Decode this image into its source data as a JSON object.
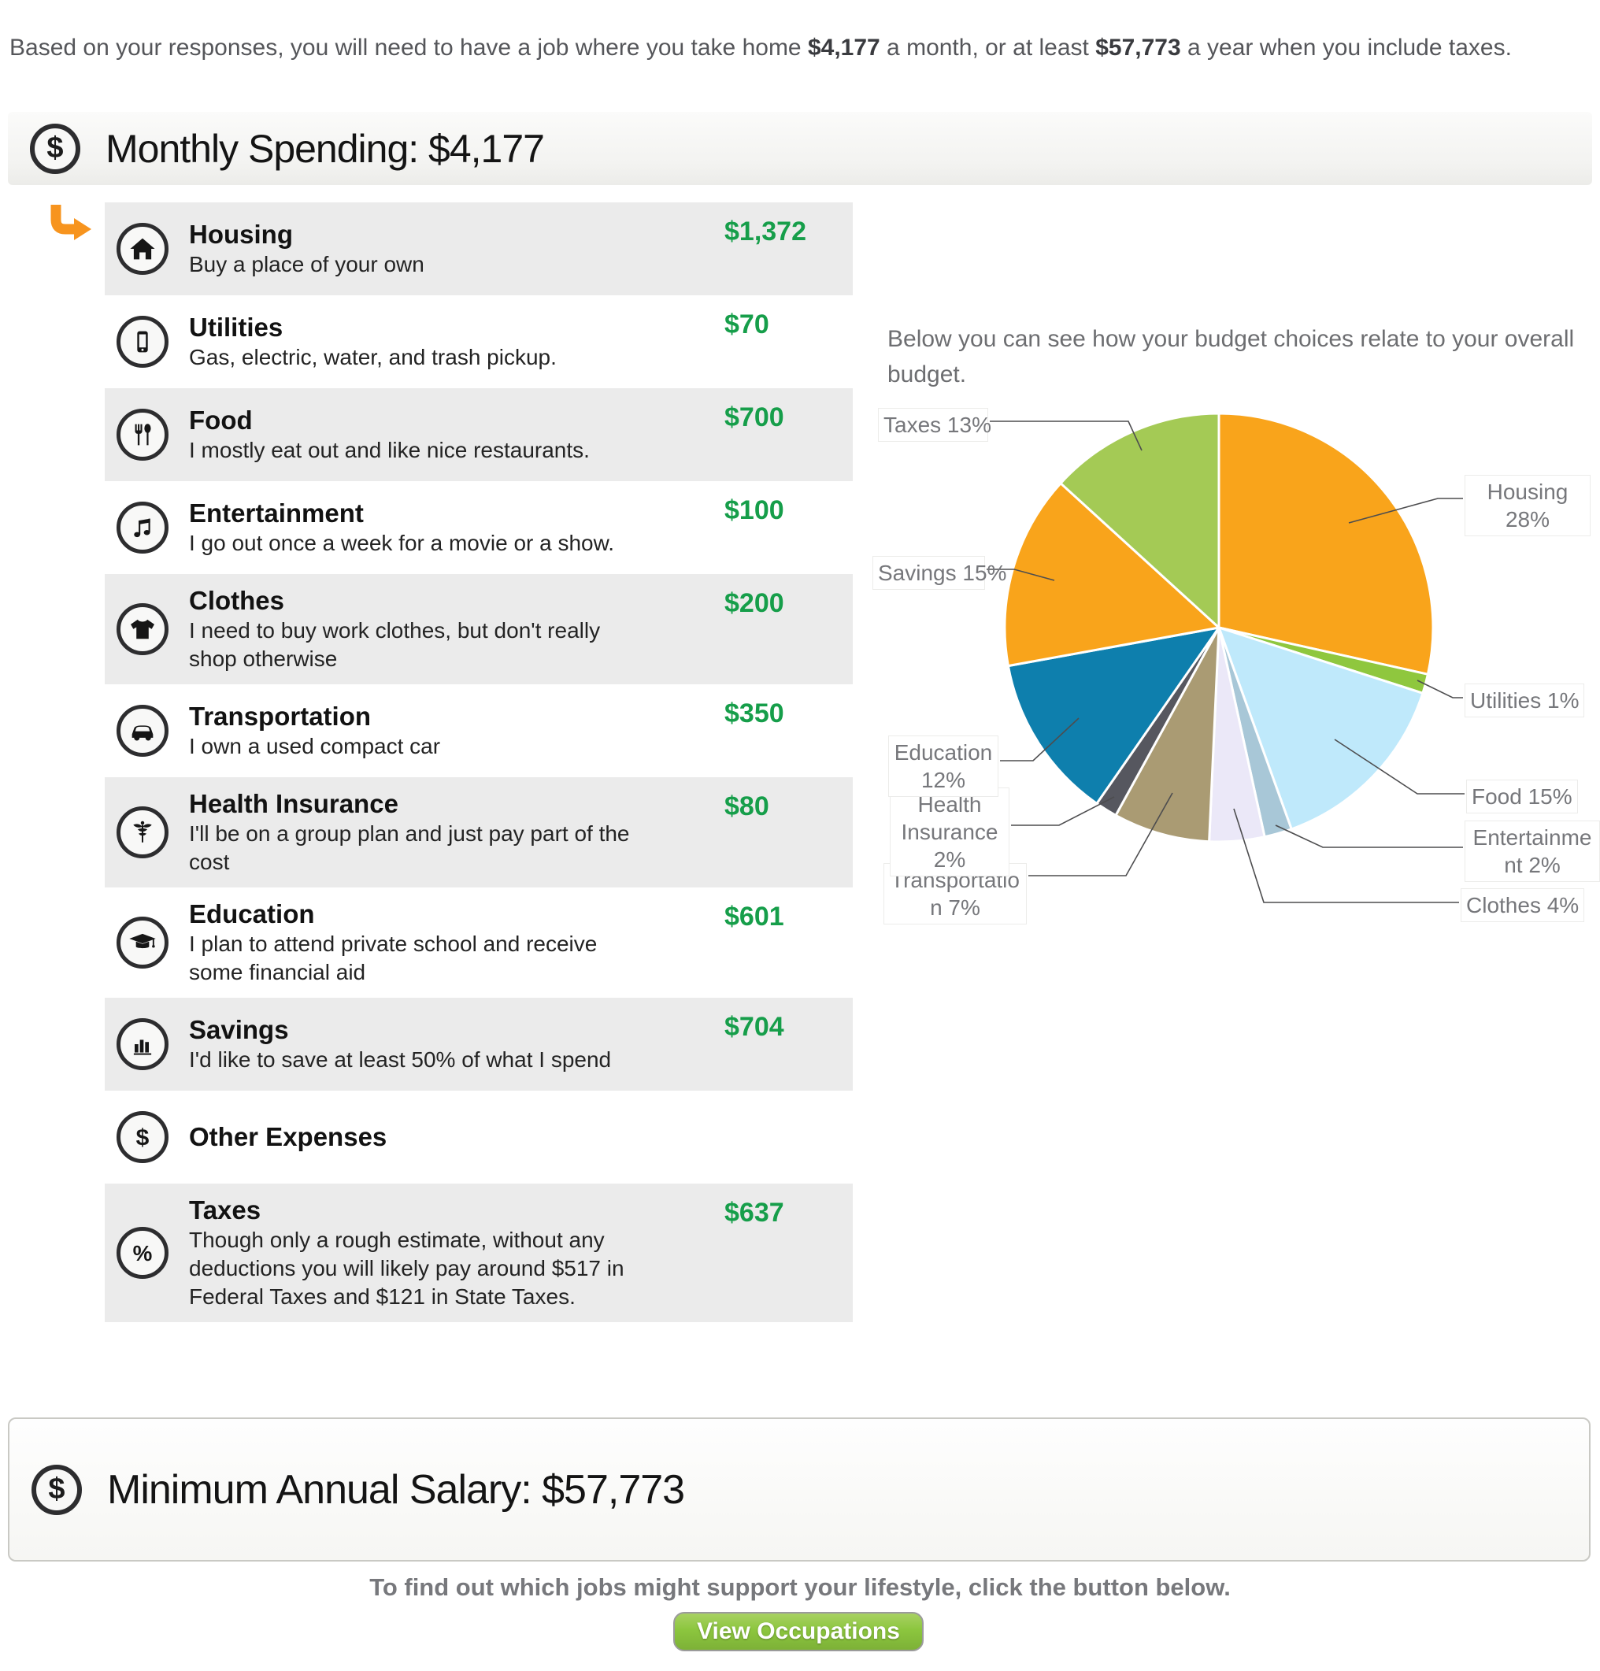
{
  "intro": {
    "part1": "Based on your responses, you will need to have a job where you take home ",
    "monthly_takehome": "$4,177",
    "part2": " a month, or at least ",
    "annual_salary": "$57,773",
    "part3": " a year when you include taxes."
  },
  "monthly_section": {
    "title": "Monthly Spending: $4,177",
    "icon": "dollar-coin-icon"
  },
  "categories": [
    {
      "name": "Housing",
      "description": "Buy a place of your own",
      "amount": "$1,372",
      "icon": "house-icon",
      "selected": true
    },
    {
      "name": "Utilities",
      "description": "Gas, electric, water, and trash pickup.",
      "amount": "$70",
      "icon": "phone-icon"
    },
    {
      "name": "Food",
      "description": "I mostly eat out and like nice restaurants.",
      "amount": "$700",
      "icon": "utensils-icon"
    },
    {
      "name": "Entertainment",
      "description": "I go out once a week for a movie or a show.",
      "amount": "$100",
      "icon": "music-notes-icon"
    },
    {
      "name": "Clothes",
      "description": "I need to buy work clothes, but don't really shop otherwise",
      "amount": "$200",
      "icon": "tshirt-icon"
    },
    {
      "name": "Transportation",
      "description": "I own a used compact car",
      "amount": "$350",
      "icon": "car-icon"
    },
    {
      "name": "Health Insurance",
      "description": "I'll be on a group plan and just pay part of the cost",
      "amount": "$80",
      "icon": "caduceus-icon"
    },
    {
      "name": "Education",
      "description": "I plan to attend private school and receive some financial aid",
      "amount": "$601",
      "icon": "graduation-cap-icon"
    },
    {
      "name": "Savings",
      "description": "I'd like to save at least 50% of what I spend",
      "amount": "$704",
      "icon": "bar-chart-icon"
    },
    {
      "name": "Other Expenses",
      "description": "",
      "amount": "",
      "icon": "dollar-coin-icon"
    },
    {
      "name": "Taxes",
      "description": "Though only a rough estimate, without any deductions you will likely pay around $517 in Federal Taxes and $121 in State Taxes.",
      "amount": "$637",
      "icon": "percent-icon"
    }
  ],
  "chart_data": {
    "type": "pie",
    "title": "Below you can see how your budget choices relate to your overall budget.",
    "categories": [
      "Housing",
      "Utilities",
      "Food",
      "Entertainment",
      "Clothes",
      "Transportation",
      "Health Insurance",
      "Education",
      "Savings",
      "Taxes"
    ],
    "values": [
      1372,
      70,
      700,
      100,
      200,
      350,
      80,
      601,
      704,
      637
    ],
    "percents": [
      28,
      1,
      15,
      2,
      4,
      7,
      2,
      12,
      15,
      13
    ],
    "labels": [
      "Housing 28%",
      "Utilities 1%",
      "Food 15%",
      "Entertainment 2%",
      "Clothes 4%",
      "Transportation 7%",
      "Health Insurance 2%",
      "Education 12%",
      "Savings 15%",
      "Taxes 13%"
    ],
    "colors": [
      "#f9a41b",
      "#8fc73e",
      "#bfe9fb",
      "#a8c7d7",
      "#ebe8f8",
      "#aa9b73",
      "#56575f",
      "#0e7fad",
      "#f9a41b",
      "#a4ca55"
    ],
    "start_angle_deg": 0,
    "direction": "clockwise",
    "slice_border_color": "#ffffff",
    "leader_line_color": "#4d4d4f",
    "label_text_color": "#76777b",
    "legend_position": "callout-labels"
  },
  "salary_section": {
    "title": "Minimum Annual Salary: $57,773",
    "icon": "dollar-coin-icon"
  },
  "footer": {
    "cta": "To find out which jobs might support your lifestyle, click the button below.",
    "button_label": "View Occupations"
  },
  "ui_colors": {
    "amount_green": "#169e4a",
    "row_alt_gray": "#ebebeb",
    "arrow_orange": "#f7941e",
    "button_green": "#8cc63e"
  }
}
